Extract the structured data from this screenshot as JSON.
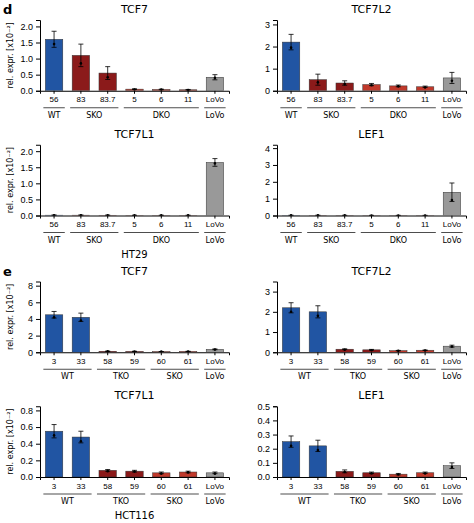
{
  "chart_data": [
    {
      "type": "bar",
      "title": "TCF7",
      "panel_label": "d",
      "ylabel": "rel. expr. [x10⁻²]",
      "categories": [
        "56",
        "83",
        "83.7",
        "5",
        "6",
        "11",
        "LoVo"
      ],
      "values": [
        1.6,
        1.1,
        0.55,
        0.05,
        0.04,
        0.03,
        0.42
      ],
      "errors": [
        0.25,
        0.35,
        0.2,
        0.01,
        0.01,
        0.01,
        0.08
      ],
      "dot_values": [
        1.45,
        0.85,
        0.42,
        0.04,
        0.035,
        0.025,
        0.4
      ],
      "colors": [
        "#2155A3",
        "#8B1A1A",
        "#8B1A1A",
        "#C0392B",
        "#C0392B",
        "#C0392B",
        "#999999"
      ],
      "groups": [
        {
          "name": "WT",
          "categories": [
            "56"
          ]
        },
        {
          "name": "SKO",
          "categories": [
            "83",
            "83.7"
          ]
        },
        {
          "name": "DKO",
          "categories": [
            "5",
            "6",
            "11"
          ]
        },
        {
          "name": "LoVo",
          "categories": [
            "LoVo"
          ]
        }
      ],
      "ylim": [
        0,
        2.2
      ],
      "yticks": [
        {
          "value": 0,
          "label": "0.0"
        },
        0.5,
        {
          "value": 1.0,
          "label": "1.0"
        },
        1.5,
        {
          "value": 2.0,
          "label": "2.0"
        }
      ]
    },
    {
      "type": "bar",
      "title": "TCF7L2",
      "categories": [
        "56",
        "83",
        "83.7",
        "5",
        "6",
        "11",
        "LoVo"
      ],
      "values": [
        2.2,
        0.5,
        0.35,
        0.28,
        0.22,
        0.18,
        0.58
      ],
      "errors": [
        0.35,
        0.25,
        0.1,
        0.05,
        0.04,
        0.03,
        0.25
      ],
      "dot_values": [
        1.95,
        0.38,
        0.3,
        0.25,
        0.2,
        0.15,
        0.45
      ],
      "colors": [
        "#2155A3",
        "#8B1A1A",
        "#8B1A1A",
        "#C0392B",
        "#C0392B",
        "#C0392B",
        "#999999"
      ],
      "groups": [
        {
          "name": "WT",
          "categories": [
            "56"
          ]
        },
        {
          "name": "SKO",
          "categories": [
            "83",
            "83.7"
          ]
        },
        {
          "name": "DKO",
          "categories": [
            "5",
            "6",
            "11"
          ]
        },
        {
          "name": "LoVo",
          "categories": [
            "LoVo"
          ]
        }
      ],
      "ylim": [
        0,
        3.2
      ],
      "yticks": [
        0,
        1,
        2,
        3
      ]
    },
    {
      "type": "bar",
      "title": "TCF7L1",
      "ylabel": "rel. expr. [x10⁻²]",
      "cell_label": "HT29",
      "categories": [
        "56",
        "83",
        "83.7",
        "5",
        "6",
        "11",
        "LoVo"
      ],
      "values": [
        0.01,
        0.01,
        0.008,
        0.005,
        0.005,
        0.005,
        1.65
      ],
      "errors": [
        0.002,
        0.003,
        0.002,
        0.001,
        0.001,
        0.001,
        0.12
      ],
      "dot_values": [
        0.008,
        0.009,
        0.007,
        0.004,
        0.004,
        0.004,
        1.62
      ],
      "colors": [
        "#2155A3",
        "#8B1A1A",
        "#8B1A1A",
        "#C0392B",
        "#C0392B",
        "#C0392B",
        "#999999"
      ],
      "groups": [
        {
          "name": "WT",
          "categories": [
            "56"
          ]
        },
        {
          "name": "SKO",
          "categories": [
            "83",
            "83.7"
          ]
        },
        {
          "name": "DKO",
          "categories": [
            "5",
            "6",
            "11"
          ]
        },
        {
          "name": "LoVo",
          "categories": [
            "LoVo"
          ]
        }
      ],
      "ylim": [
        0,
        2.2
      ],
      "yticks": [
        {
          "value": 0,
          "label": "0.0"
        },
        0.5,
        {
          "value": 1.0,
          "label": "1.0"
        },
        1.5,
        {
          "value": 2.0,
          "label": "2.0"
        }
      ]
    },
    {
      "type": "bar",
      "title": "LEF1",
      "categories": [
        "56",
        "83",
        "83.7",
        "5",
        "6",
        "11",
        "LoVo"
      ],
      "values": [
        0.01,
        0.01,
        0.008,
        0.005,
        0.005,
        0.005,
        1.38
      ],
      "errors": [
        0.002,
        0.003,
        0.002,
        0.001,
        0.001,
        0.001,
        0.55
      ],
      "dot_values": [
        0.008,
        0.009,
        0.007,
        0.004,
        0.004,
        0.004,
        0.92
      ],
      "colors": [
        "#2155A3",
        "#8B1A1A",
        "#8B1A1A",
        "#C0392B",
        "#C0392B",
        "#C0392B",
        "#999999"
      ],
      "groups": [
        {
          "name": "WT",
          "categories": [
            "56"
          ]
        },
        {
          "name": "SKO",
          "categories": [
            "83",
            "83.7"
          ]
        },
        {
          "name": "DKO",
          "categories": [
            "5",
            "6",
            "11"
          ]
        },
        {
          "name": "LoVo",
          "categories": [
            "LoVo"
          ]
        }
      ],
      "ylim": [
        0,
        4.2
      ],
      "yticks": [
        0,
        1,
        2,
        3,
        4
      ]
    },
    {
      "type": "bar",
      "title": "TCF7",
      "panel_label": "e",
      "ylabel": "rel. expr. [x10⁻²]",
      "categories": [
        "3",
        "33",
        "58",
        "59",
        "60",
        "61",
        "LoVo"
      ],
      "values": [
        4.5,
        4.2,
        0.12,
        0.1,
        0.08,
        0.1,
        0.35
      ],
      "errors": [
        0.4,
        0.5,
        0.02,
        0.02,
        0.01,
        0.02,
        0.05
      ],
      "dot_values": [
        4.2,
        3.8,
        0.1,
        0.09,
        0.07,
        0.09,
        0.32
      ],
      "colors": [
        "#2155A3",
        "#2155A3",
        "#8B1A1A",
        "#8B1A1A",
        "#C0392B",
        "#C0392B",
        "#999999"
      ],
      "groups": [
        {
          "name": "WT",
          "categories": [
            "3",
            "33"
          ]
        },
        {
          "name": "TKO",
          "categories": [
            "58",
            "59"
          ]
        },
        {
          "name": "SKO",
          "categories": [
            "60",
            "61"
          ]
        },
        {
          "name": "LoVo",
          "categories": [
            "LoVo"
          ]
        }
      ],
      "ylim": [
        0,
        8.5
      ],
      "yticks": [
        0,
        2,
        4,
        6,
        8
      ]
    },
    {
      "type": "bar",
      "title": "TCF7L2",
      "categories": [
        "3",
        "33",
        "58",
        "59",
        "60",
        "61",
        "LoVo"
      ],
      "values": [
        2.2,
        2.0,
        0.15,
        0.12,
        0.08,
        0.1,
        0.3
      ],
      "errors": [
        0.25,
        0.3,
        0.02,
        0.02,
        0.01,
        0.01,
        0.05
      ],
      "dot_values": [
        2.0,
        1.8,
        0.12,
        0.1,
        0.07,
        0.09,
        0.28
      ],
      "colors": [
        "#2155A3",
        "#2155A3",
        "#8B1A1A",
        "#8B1A1A",
        "#C0392B",
        "#C0392B",
        "#999999"
      ],
      "groups": [
        {
          "name": "WT",
          "categories": [
            "3",
            "33"
          ]
        },
        {
          "name": "TKO",
          "categories": [
            "58",
            "59"
          ]
        },
        {
          "name": "SKO",
          "categories": [
            "60",
            "61"
          ]
        },
        {
          "name": "LoVo",
          "categories": [
            "LoVo"
          ]
        }
      ],
      "ylim": [
        0,
        3.5
      ],
      "yticks": [
        0,
        1,
        2,
        3
      ]
    },
    {
      "type": "bar",
      "title": "TCF7L1",
      "ylabel": "rel. expr. [x10⁻²]",
      "cell_label": "HCT116",
      "categories": [
        "3",
        "33",
        "58",
        "59",
        "60",
        "61",
        "LoVo"
      ],
      "values": [
        0.55,
        0.48,
        0.08,
        0.07,
        0.05,
        0.06,
        0.05
      ],
      "errors": [
        0.08,
        0.07,
        0.01,
        0.01,
        0.01,
        0.01,
        0.01
      ],
      "dot_values": [
        0.5,
        0.43,
        0.07,
        0.065,
        0.04,
        0.055,
        0.04
      ],
      "colors": [
        "#2155A3",
        "#2155A3",
        "#8B1A1A",
        "#8B1A1A",
        "#C0392B",
        "#C0392B",
        "#999999"
      ],
      "groups": [
        {
          "name": "WT",
          "categories": [
            "3",
            "33"
          ]
        },
        {
          "name": "TKO",
          "categories": [
            "58",
            "59"
          ]
        },
        {
          "name": "SKO",
          "categories": [
            "60",
            "61"
          ]
        },
        {
          "name": "LoVo",
          "categories": [
            "LoVo"
          ]
        }
      ],
      "ylim": [
        0,
        0.85
      ],
      "yticks": [
        {
          "value": 0,
          "label": "0.0"
        },
        0.2,
        0.4,
        0.6,
        0.8
      ]
    },
    {
      "type": "bar",
      "title": "LEF1",
      "categories": [
        "3",
        "33",
        "58",
        "59",
        "60",
        "61",
        "LoVo"
      ],
      "values": [
        0.25,
        0.22,
        0.04,
        0.03,
        0.02,
        0.03,
        0.08
      ],
      "errors": [
        0.04,
        0.04,
        0.01,
        0.005,
        0.005,
        0.005,
        0.02
      ],
      "dot_values": [
        0.22,
        0.19,
        0.035,
        0.025,
        0.018,
        0.025,
        0.07
      ],
      "colors": [
        "#2155A3",
        "#2155A3",
        "#8B1A1A",
        "#8B1A1A",
        "#C0392B",
        "#C0392B",
        "#999999"
      ],
      "groups": [
        {
          "name": "WT",
          "categories": [
            "3",
            "33"
          ]
        },
        {
          "name": "TKO",
          "categories": [
            "58",
            "59"
          ]
        },
        {
          "name": "SKO",
          "categories": [
            "60",
            "61"
          ]
        },
        {
          "name": "LoVo",
          "categories": [
            "LoVo"
          ]
        }
      ],
      "ylim": [
        0,
        0.5
      ],
      "yticks": [
        {
          "value": 0,
          "label": "0.0"
        },
        0.1,
        0.2,
        0.3,
        0.4,
        0.5
      ]
    }
  ]
}
